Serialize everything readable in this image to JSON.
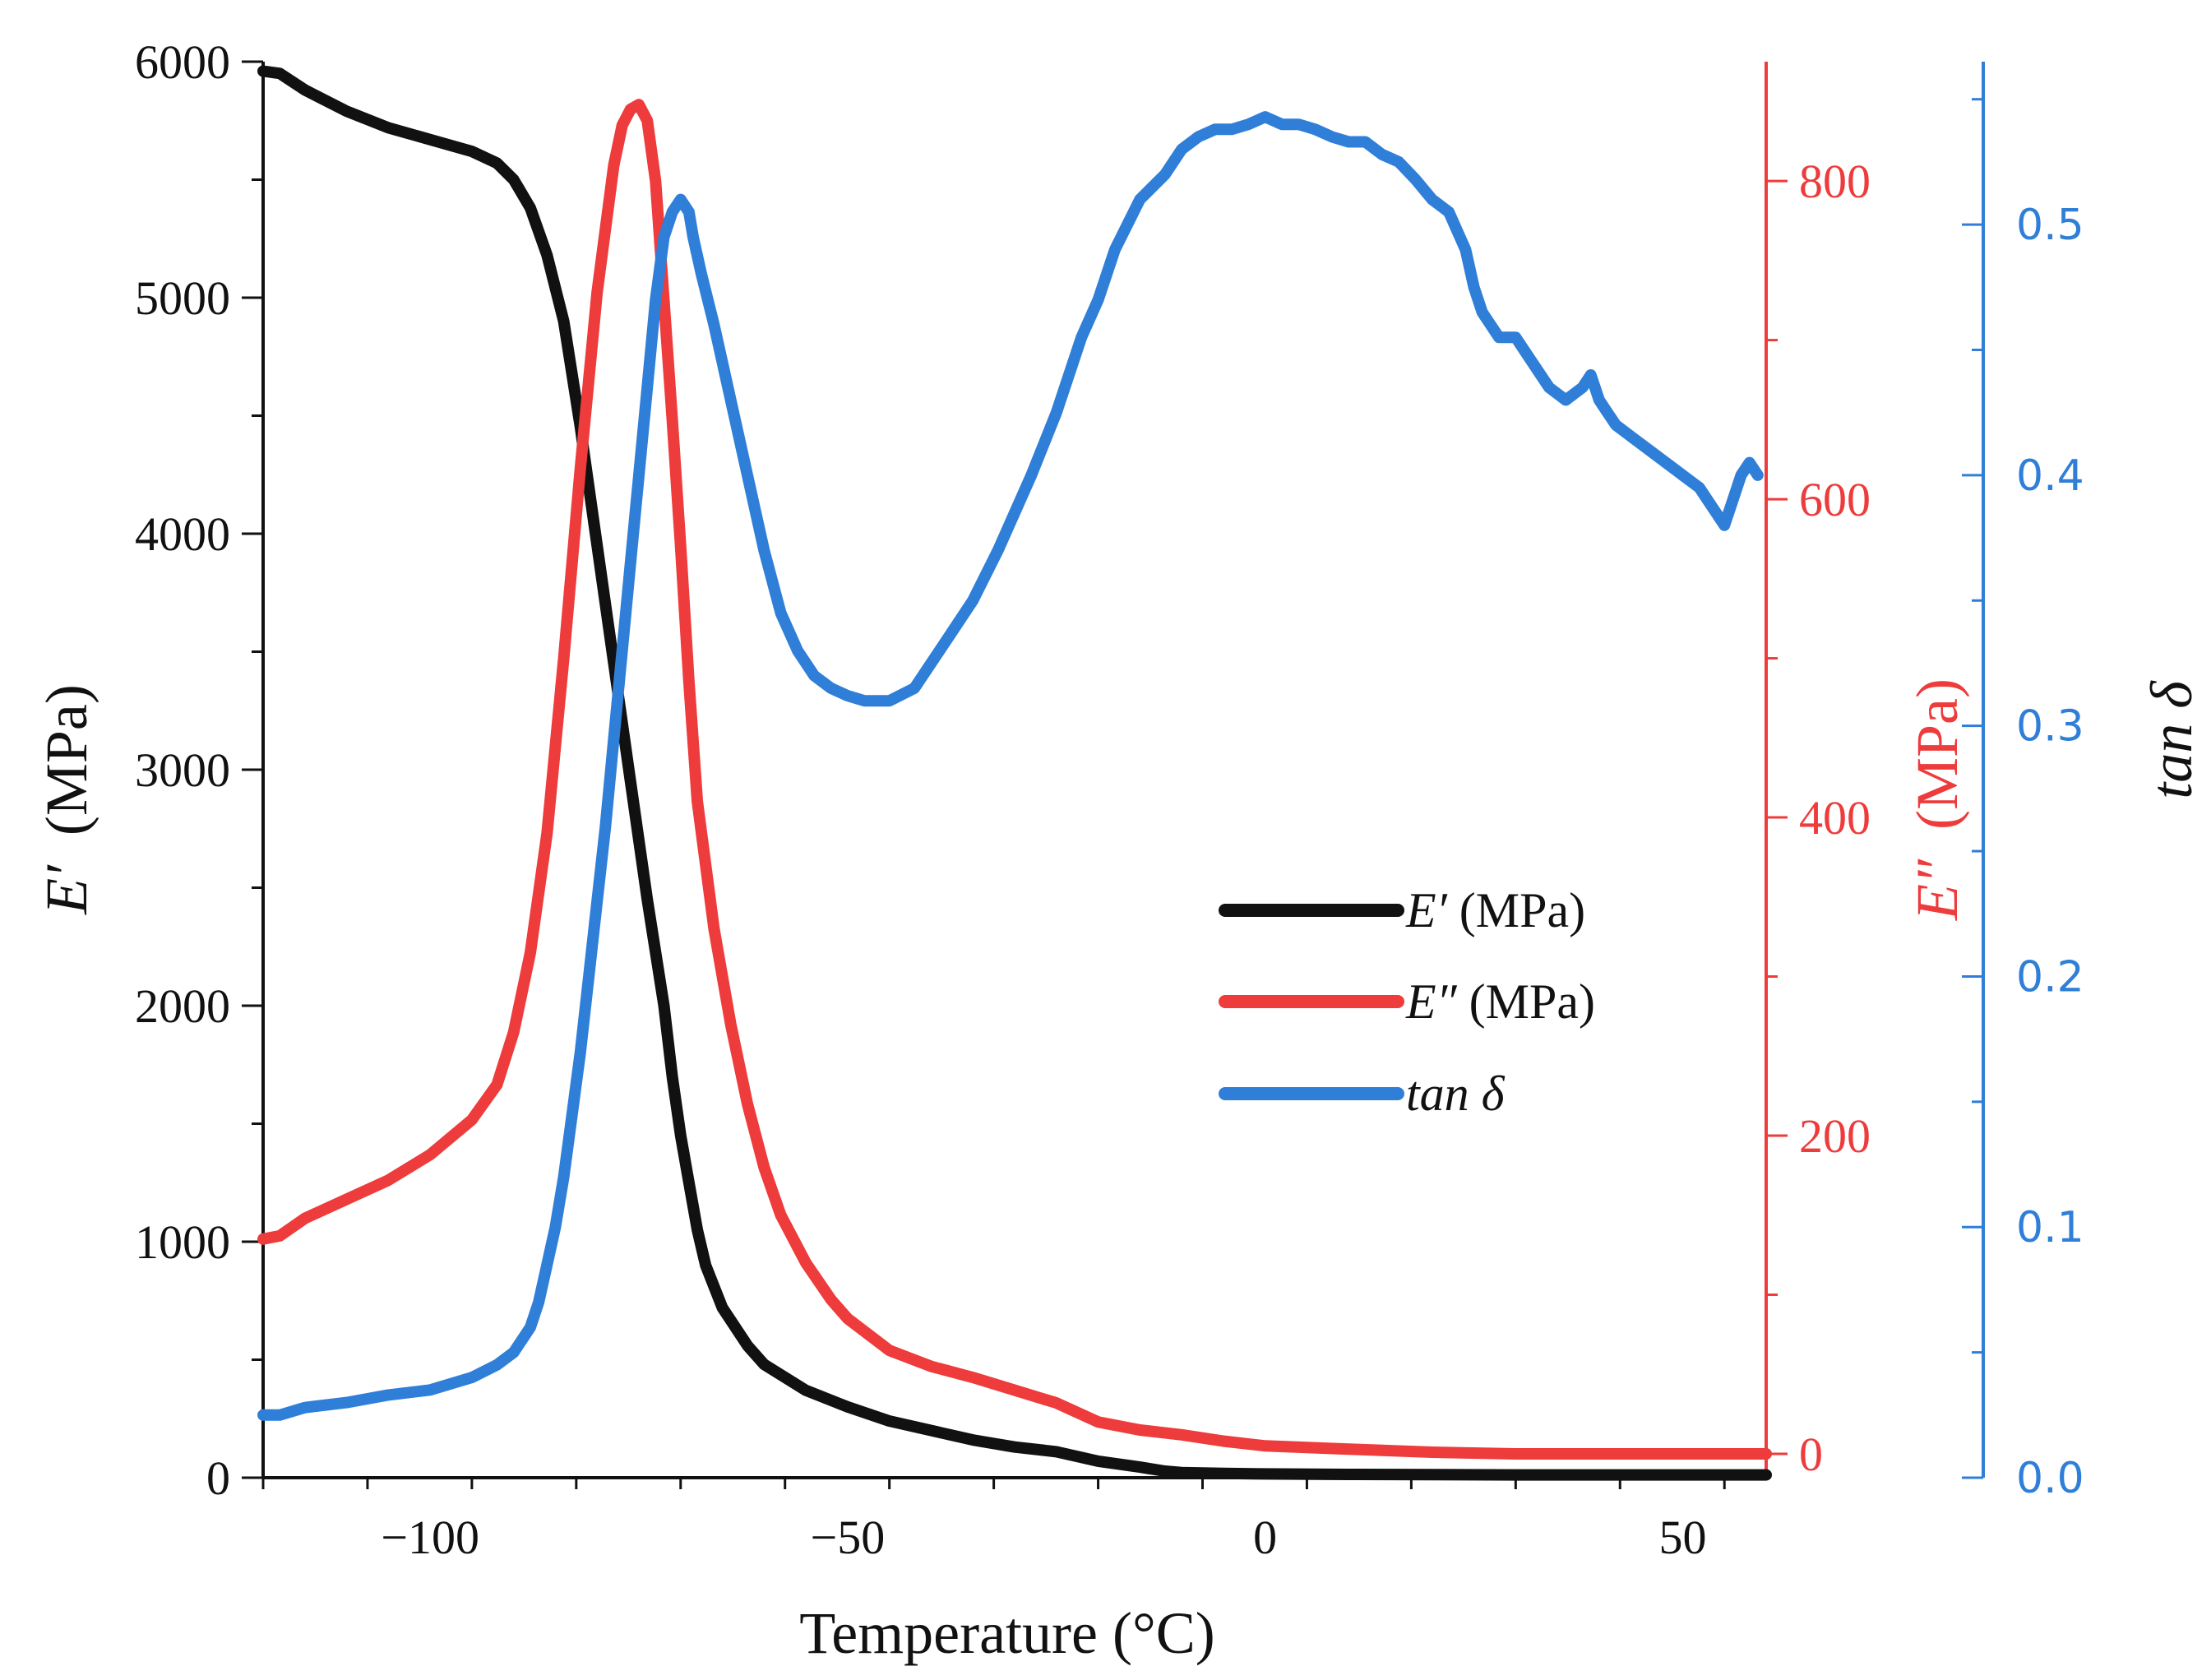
{
  "chart_data": {
    "type": "line",
    "xlabel": "Temperature (°C)",
    "xlim": [
      -120,
      60
    ],
    "xticks": [
      -100,
      -50,
      0,
      50
    ],
    "xtick_labels": [
      "−100",
      "−50",
      "0",
      "50"
    ],
    "axes": {
      "left": {
        "label_symbol": "E′",
        "label_unit": "(MPa)",
        "ylim": [
          0,
          6000
        ],
        "ticks": [
          0,
          1000,
          2000,
          3000,
          4000,
          5000,
          6000
        ],
        "tick_labels": [
          "0",
          "1000",
          "2000",
          "3000",
          "4000",
          "5000",
          "6000"
        ],
        "color": "#111111"
      },
      "right_red": {
        "label_symbol": "E″",
        "label_unit": "(MPa)",
        "ylim": [
          -15,
          875
        ],
        "ticks": [
          0,
          200,
          400,
          600,
          800
        ],
        "tick_labels": [
          "0",
          "200",
          "400",
          "600",
          "800"
        ],
        "color": "#ee3b3b"
      },
      "right_blue": {
        "label_symbol": "tan δ",
        "ylim": [
          0,
          0.565
        ],
        "ticks": [
          0,
          0.1,
          0.2,
          0.3,
          0.4,
          0.5
        ],
        "tick_labels": [
          "0.0",
          "0.1",
          "0.2",
          "0.3",
          "0.4",
          "0.5"
        ],
        "color": "#2f7fd8"
      }
    },
    "legend_position": "center-right",
    "series": [
      {
        "name": "E′ (MPa)",
        "legend_symbol": "E′",
        "legend_unit": " (MPa)",
        "axis": "left",
        "color": "#111111",
        "x": [
          -120,
          -118,
          -115,
          -110,
          -105,
          -100,
          -95,
          -92,
          -90,
          -88,
          -86,
          -84,
          -82,
          -80,
          -78,
          -76,
          -75,
          -74,
          -72,
          -71,
          -70,
          -69,
          -68,
          -67,
          -65,
          -62,
          -60,
          -55,
          -50,
          -45,
          -40,
          -35,
          -30,
          -25,
          -20,
          -15,
          -12,
          -10,
          -5,
          0,
          10,
          20,
          30,
          40,
          50,
          60
        ],
        "y": [
          5960,
          5950,
          5880,
          5790,
          5720,
          5670,
          5620,
          5570,
          5500,
          5380,
          5180,
          4900,
          4450,
          3950,
          3450,
          2950,
          2700,
          2450,
          2000,
          1700,
          1450,
          1250,
          1050,
          900,
          720,
          560,
          480,
          370,
          300,
          240,
          200,
          160,
          130,
          110,
          70,
          45,
          28,
          22,
          18,
          16,
          14,
          13,
          12,
          12,
          12,
          12
        ]
      },
      {
        "name": "E″ (MPa)",
        "legend_symbol": "E″",
        "legend_unit": " (MPa)",
        "axis": "right_red",
        "color": "#ee3b3b",
        "x": [
          -120,
          -118,
          -115,
          -110,
          -105,
          -100,
          -95,
          -92,
          -90,
          -88,
          -86,
          -84,
          -82,
          -80,
          -78,
          -77,
          -76,
          -75,
          -74,
          -73,
          -72,
          -71,
          -70,
          -69,
          -68,
          -66,
          -64,
          -62,
          -60,
          -58,
          -55,
          -52,
          -50,
          -45,
          -40,
          -35,
          -30,
          -25,
          -20,
          -15,
          -10,
          -5,
          0,
          10,
          20,
          30,
          40,
          50,
          60
        ],
        "y": [
          135,
          137,
          148,
          160,
          172,
          188,
          210,
          232,
          265,
          315,
          390,
          500,
          620,
          730,
          810,
          835,
          845,
          848,
          838,
          800,
          725,
          650,
          570,
          485,
          410,
          330,
          270,
          220,
          180,
          150,
          120,
          97,
          85,
          65,
          55,
          48,
          40,
          32,
          20,
          15,
          12,
          8,
          5,
          3,
          1,
          0,
          0,
          0,
          0
        ]
      },
      {
        "name": "tan δ",
        "legend_symbol": "tan δ",
        "legend_unit": "",
        "axis": "right_blue",
        "color": "#2f7fd8",
        "x": [
          -120,
          -118,
          -115,
          -110,
          -105,
          -100,
          -95,
          -92,
          -90,
          -88,
          -87,
          -86,
          -85,
          -84,
          -83,
          -82,
          -81,
          -80,
          -79,
          -78,
          -77,
          -76,
          -75,
          -74,
          -73,
          -72,
          -71,
          -70,
          -69,
          -68.5,
          -67.5,
          -66,
          -64,
          -62,
          -60,
          -58,
          -56,
          -54,
          -52,
          -50,
          -48,
          -45,
          -42,
          -40,
          -38,
          -35,
          -32,
          -30,
          -28,
          -25,
          -22,
          -20,
          -18,
          -15,
          -12,
          -10,
          -8,
          -6,
          -4,
          -2,
          0,
          2,
          4,
          6,
          8,
          10,
          12,
          14,
          16,
          18,
          20,
          22,
          24,
          25,
          26,
          28,
          30,
          32,
          34,
          36,
          38,
          39,
          40,
          41,
          42,
          44,
          46,
          48,
          50,
          52,
          53,
          54,
          55,
          56,
          57,
          58,
          59
        ],
        "y": [
          0.025,
          0.025,
          0.028,
          0.03,
          0.033,
          0.035,
          0.04,
          0.045,
          0.05,
          0.06,
          0.07,
          0.085,
          0.1,
          0.12,
          0.145,
          0.17,
          0.2,
          0.23,
          0.26,
          0.295,
          0.33,
          0.365,
          0.4,
          0.435,
          0.47,
          0.495,
          0.505,
          0.51,
          0.505,
          0.495,
          0.48,
          0.46,
          0.43,
          0.4,
          0.37,
          0.345,
          0.33,
          0.32,
          0.315,
          0.312,
          0.31,
          0.31,
          0.315,
          0.325,
          0.335,
          0.35,
          0.37,
          0.385,
          0.4,
          0.425,
          0.455,
          0.47,
          0.49,
          0.51,
          0.52,
          0.53,
          0.535,
          0.538,
          0.538,
          0.54,
          0.543,
          0.54,
          0.54,
          0.538,
          0.535,
          0.533,
          0.533,
          0.528,
          0.525,
          0.518,
          0.51,
          0.505,
          0.49,
          0.475,
          0.465,
          0.455,
          0.455,
          0.445,
          0.435,
          0.43,
          0.435,
          0.44,
          0.43,
          0.425,
          0.42,
          0.415,
          0.41,
          0.405,
          0.4,
          0.395,
          0.39,
          0.385,
          0.38,
          0.39,
          0.4,
          0.405,
          0.4
        ]
      }
    ]
  }
}
